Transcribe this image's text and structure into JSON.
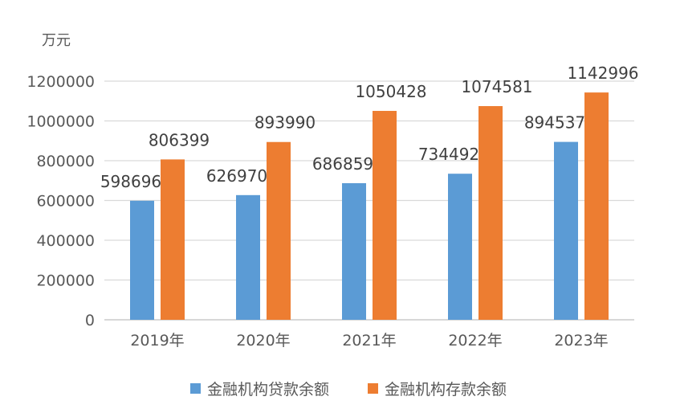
{
  "chart_data": {
    "type": "bar",
    "unit_label": "万元",
    "categories": [
      "2019年",
      "2020年",
      "2021年",
      "2022年",
      "2023年"
    ],
    "series": [
      {
        "name": "金融机构贷款余额",
        "color": "#5b9bd5",
        "values": [
          598696,
          626970,
          686859,
          734492,
          894537
        ]
      },
      {
        "name": "金融机构存款余额",
        "color": "#ed7d31",
        "values": [
          806399,
          893990,
          1050428,
          1074581,
          1142996
        ]
      }
    ],
    "ylim": [
      0,
      1200000
    ],
    "yticks": [
      0,
      200000,
      400000,
      600000,
      800000,
      1000000,
      1200000
    ],
    "grid": true,
    "legend_position": "bottom"
  }
}
